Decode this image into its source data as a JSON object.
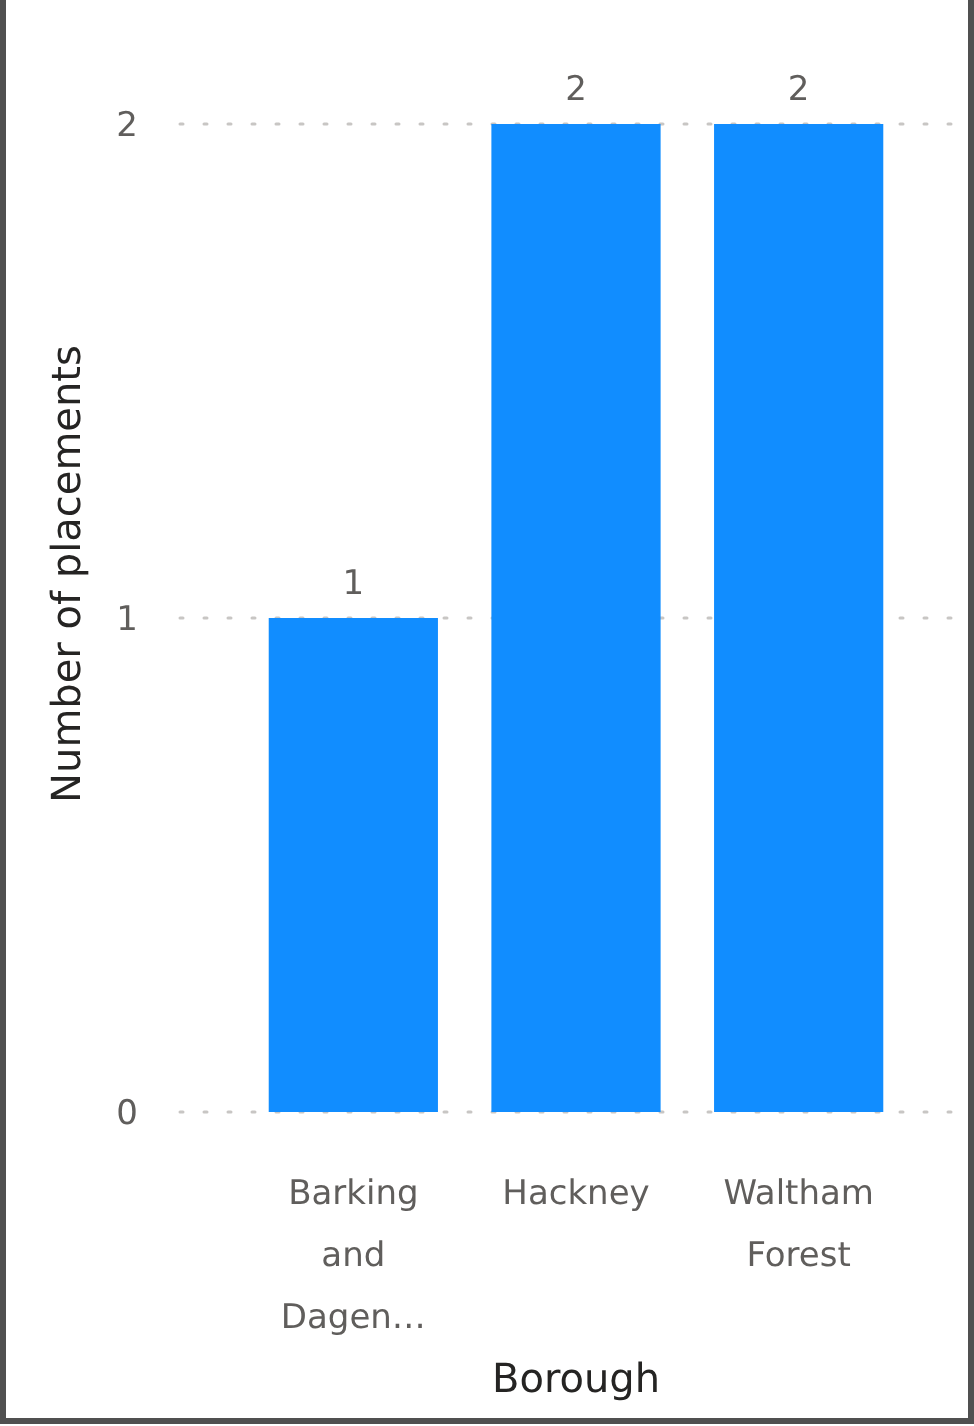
{
  "chart_data": {
    "type": "bar",
    "xlabel": "Borough",
    "ylabel": "Number of placements",
    "categories": [
      "Barking and Dagen…",
      "Hackney",
      "Waltham Forest"
    ],
    "values": [
      1,
      2,
      2
    ],
    "color": "#118dff",
    "ylim": [
      0,
      2
    ],
    "yticks": [
      0,
      1,
      2
    ],
    "grid": "y",
    "data_labels": true
  }
}
